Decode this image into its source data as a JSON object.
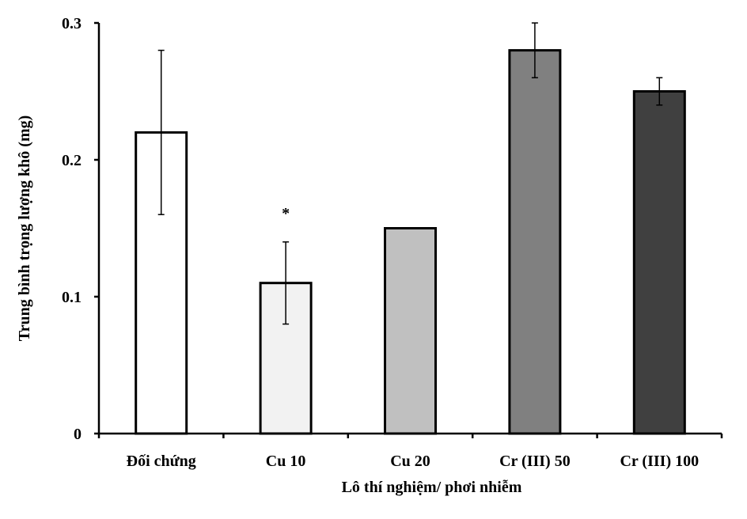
{
  "chart_data": {
    "type": "bar",
    "categories": [
      "Đối chứng",
      "Cu 10",
      "Cu 20",
      "Cr (III) 50",
      "Cr (III) 100"
    ],
    "values": [
      0.22,
      0.11,
      0.15,
      0.28,
      0.25
    ],
    "errors": [
      0.06,
      0.03,
      null,
      0.02,
      0.01
    ],
    "colors": [
      "#ffffff",
      "#f2f2f2",
      "#c0c0c0",
      "#808080",
      "#404040"
    ],
    "annotations": [
      {
        "category": "Cu 10",
        "text": "*"
      }
    ],
    "yticks": [
      "0",
      "0.1",
      "0.2",
      "0.3"
    ],
    "ylim": [
      0,
      0.3
    ],
    "xlabel": "Lô thí nghiệm/ phơi nhiễm",
    "ylabel": "Trung bình trọng lượng khô (mg)",
    "grid": false,
    "legend": "none"
  }
}
